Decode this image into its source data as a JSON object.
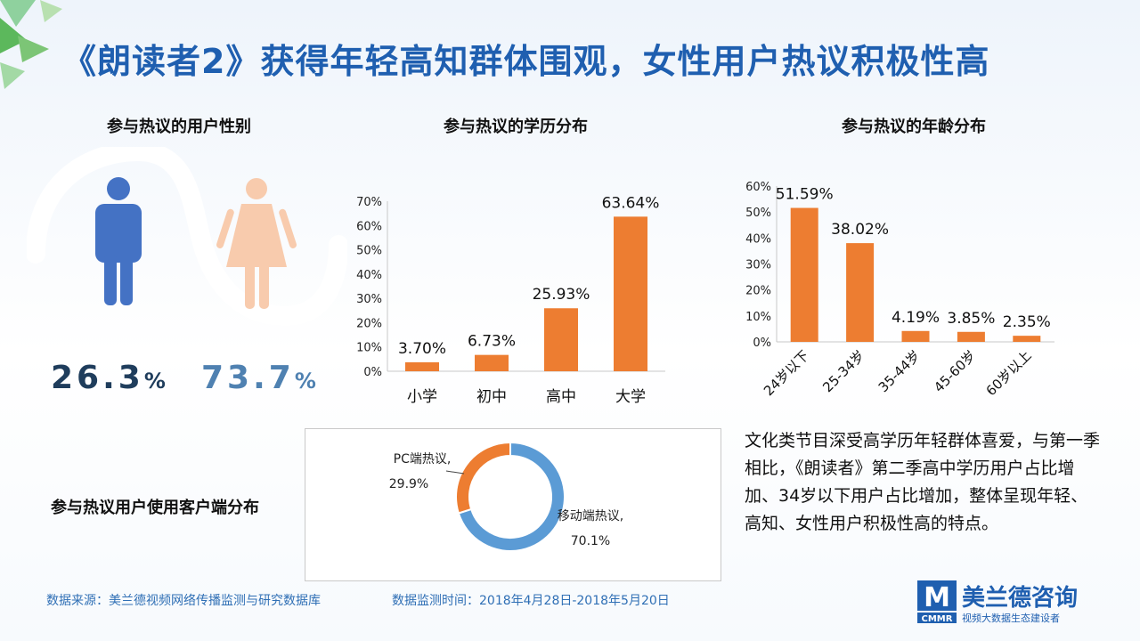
{
  "title": "《朗读者2》获得年轻高知群体围观，女性用户热议积极性高",
  "gender": {
    "title": "参与热议的用户性别",
    "male_value": "26.3",
    "female_value": "73.7",
    "percent_sign": "%",
    "colors": {
      "male": "#4472c4",
      "female": "#f8cbad",
      "male_text": "#1f3d5c",
      "female_text": "#4f81b1"
    }
  },
  "education_chart_title": "参与热议的学历分布",
  "age_chart_title": "参与热议的年龄分布",
  "client_title": "参与热议用户使用客户端分布",
  "description": "文化类节目深受高学历年轻群体喜爱，与第一季相比，《朗读者》第二季高中学历用户占比增加、34岁以下用户占比增加，整体呈现年轻、高知、女性用户积极性高的特点。",
  "footer": {
    "source": "数据来源：美兰德视频网络传播监测与研究数据库",
    "period": "数据监测时间：2018年4月28日-2018年5月20日"
  },
  "logo": {
    "mark": "M",
    "name": "美兰德咨询",
    "abbr": "CMMR",
    "tagline": "视频大数据生态建设者"
  },
  "chart_data": [
    {
      "type": "bar",
      "categories": [
        "小学",
        "初中",
        "高中",
        "大学"
      ],
      "values": [
        3.7,
        6.73,
        25.93,
        63.64
      ],
      "labels": [
        "3.70%",
        "6.73%",
        "25.93%",
        "63.64%"
      ],
      "yticks": [
        "0%",
        "10%",
        "20%",
        "30%",
        "40%",
        "50%",
        "60%",
        "70%"
      ],
      "ylim": [
        0,
        70
      ],
      "color": "#ed7d31"
    },
    {
      "type": "bar",
      "categories": [
        "24岁以下",
        "25-34岁",
        "35-44岁",
        "45-60岁",
        "60岁以上"
      ],
      "values": [
        51.59,
        38.02,
        4.19,
        3.85,
        2.35
      ],
      "labels": [
        "51.59%",
        "38.02%",
        "4.19%",
        "3.85%",
        "2.35%"
      ],
      "yticks": [
        "0%",
        "10%",
        "20%",
        "30%",
        "40%",
        "50%",
        "60%"
      ],
      "ylim": [
        0,
        60
      ],
      "color": "#ed7d31"
    },
    {
      "type": "pie",
      "categories": [
        "移动端热议",
        "PC端热议"
      ],
      "values": [
        70.1,
        29.9
      ],
      "label_names": [
        "移动端热议,",
        "PC端热议,"
      ],
      "label_values": [
        "70.1%",
        "29.9%"
      ],
      "colors": [
        "#5b9bd5",
        "#ed7d31"
      ]
    }
  ]
}
